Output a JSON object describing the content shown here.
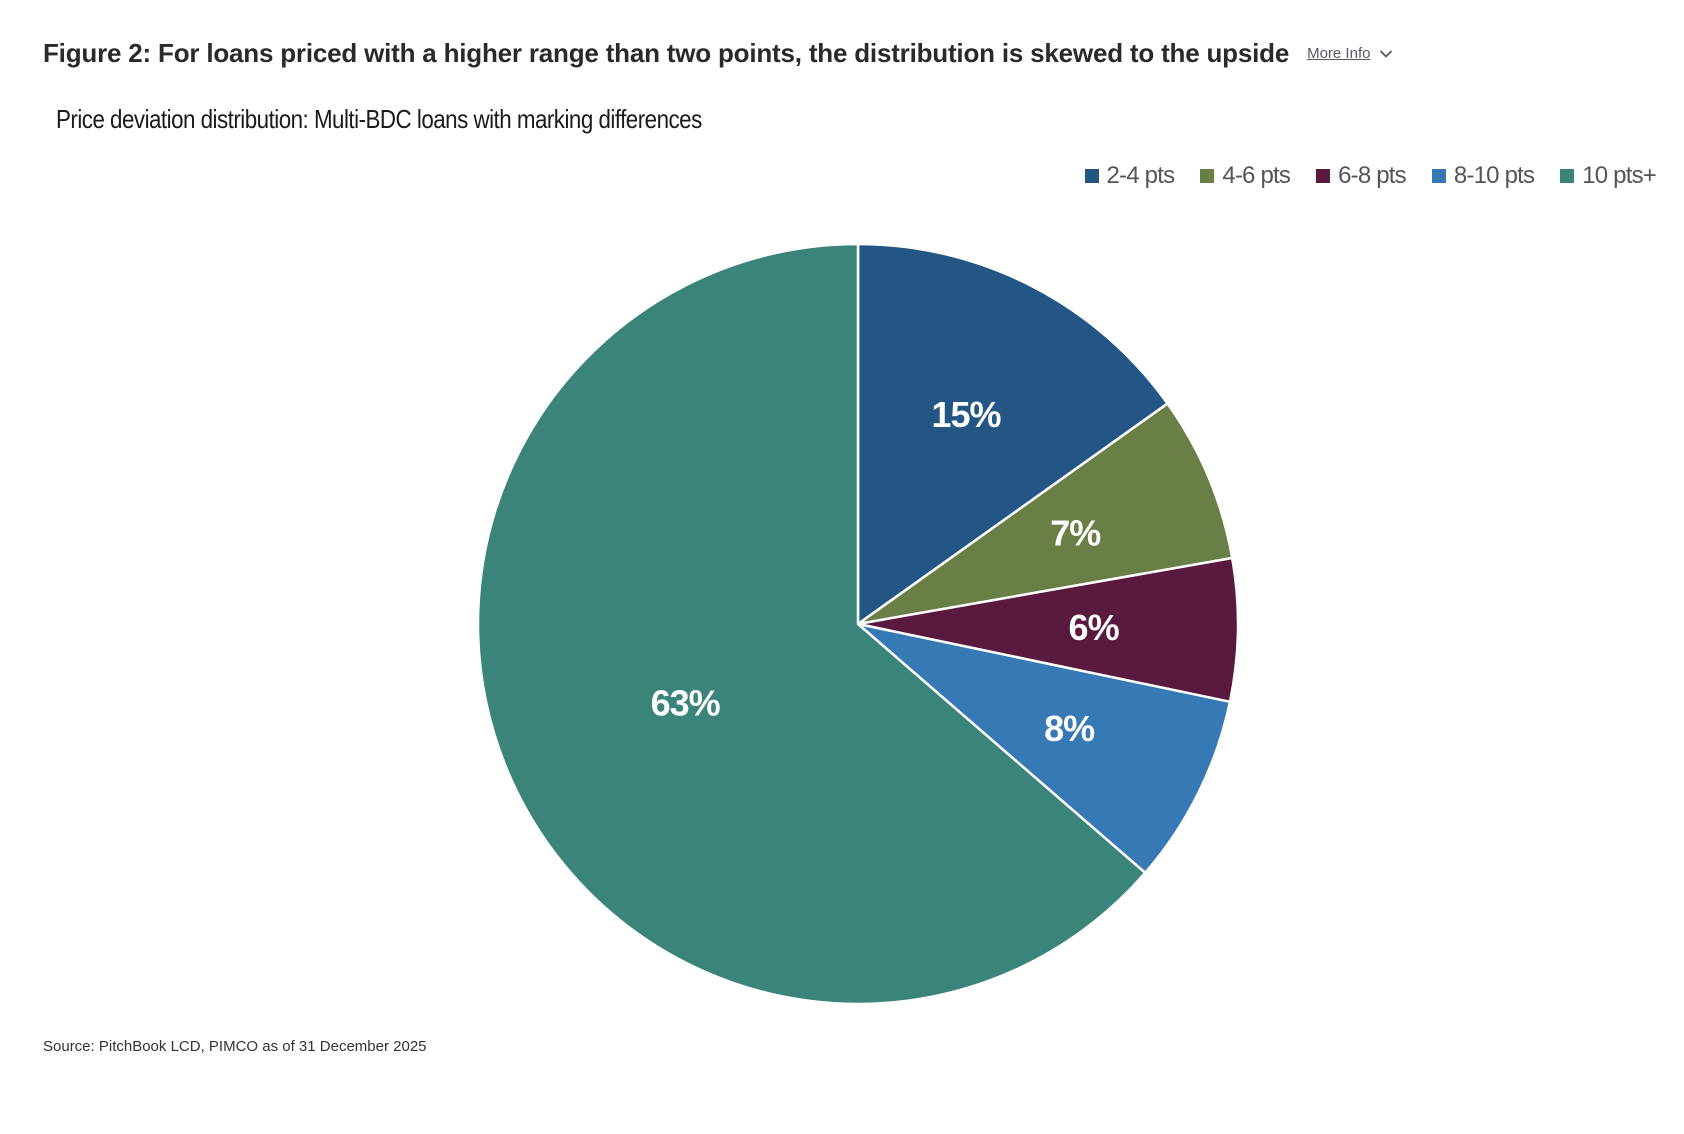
{
  "figure": {
    "title": "Figure 2: For loans priced with a higher range than two points, the distribution is skewed to the upside",
    "more_info_label": "More Info"
  },
  "chart_data": {
    "type": "pie",
    "subtitle": "Price deviation distribution: Multi-BDC loans with marking differences",
    "categories": [
      "2-4 pts",
      "4-6 pts",
      "6-8 pts",
      "8-10 pts",
      "10 pts+"
    ],
    "values": [
      15,
      7,
      6,
      8,
      63
    ],
    "data_labels": [
      "15%",
      "7%",
      "6%",
      "8%",
      "63%"
    ],
    "colors": [
      "#235684",
      "#6a7f45",
      "#5a1a3f",
      "#3679b5",
      "#3b8479"
    ],
    "start_angle_deg": 0,
    "direction": "clockwise",
    "legend_placement": "top-right",
    "label_color": "#ffffff"
  },
  "source": "Source: PitchBook LCD, PIMCO as of 31 December 2025",
  "icons": {
    "more_info_chevron": "chevron-down-icon"
  }
}
